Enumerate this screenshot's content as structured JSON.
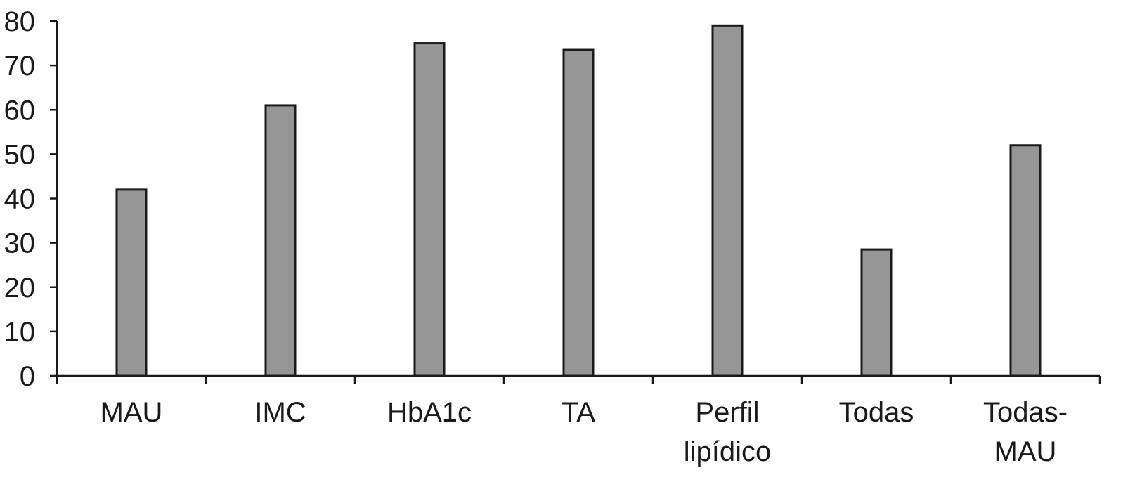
{
  "chart_data": {
    "type": "bar",
    "categories": [
      [
        "MAU"
      ],
      [
        "IMC"
      ],
      [
        "HbA1c"
      ],
      [
        "TA"
      ],
      [
        "Perfil",
        "lipídico"
      ],
      [
        "Todas"
      ],
      [
        "Todas-",
        "MAU"
      ]
    ],
    "values": [
      42,
      61,
      75,
      73.5,
      79,
      28.5,
      52
    ],
    "ylim": [
      0,
      80
    ],
    "yticks": [
      0,
      10,
      20,
      30,
      40,
      50,
      60,
      70,
      80
    ],
    "title": "",
    "xlabel": "",
    "ylabel": "",
    "grid": false,
    "bar_color": "#969696",
    "edge_color": "#1a1a1a"
  }
}
